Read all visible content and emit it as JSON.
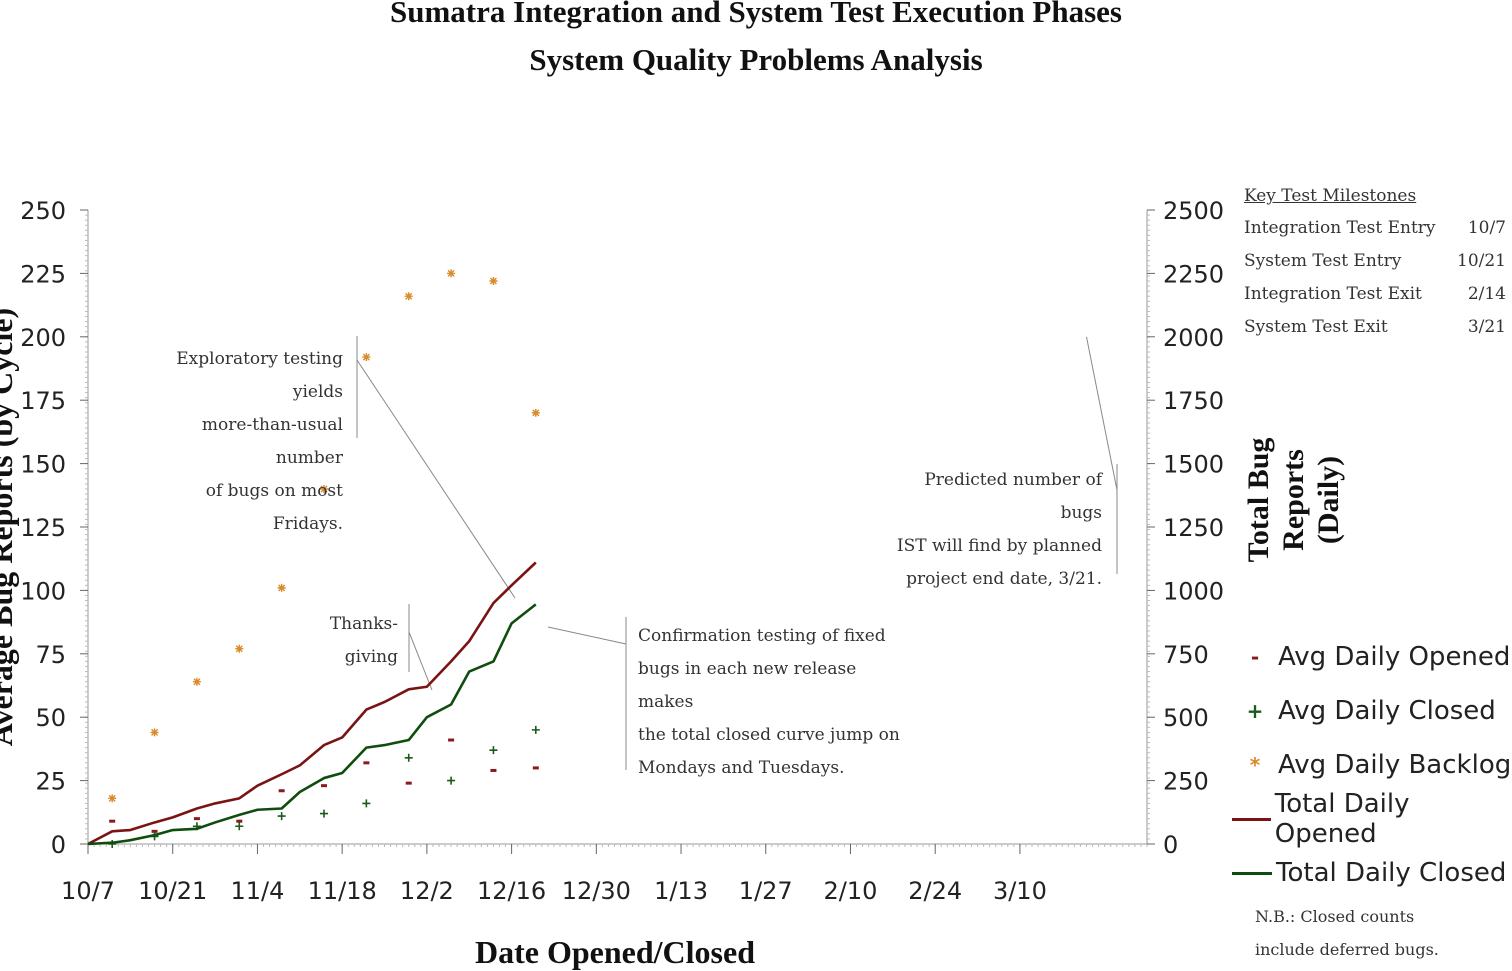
{
  "chart_data": {
    "type": "line",
    "title": "Sumatra Integration and System Test Execution Phases",
    "subtitle": "System Quality Problems Analysis",
    "xlabel": "Date Opened/Closed",
    "ylabel_left": "Average Bug Reports (by Cycle)",
    "ylabel_right": "Total Bug Reports (Daily)",
    "x_ticks": [
      "10/7",
      "10/21",
      "11/4",
      "11/18",
      "12/2",
      "12/16",
      "12/30",
      "1/13",
      "1/27",
      "2/10",
      "2/24",
      "3/10"
    ],
    "xlim": [
      0,
      175
    ],
    "y_left": {
      "ticks": [
        0,
        25,
        50,
        75,
        100,
        125,
        150,
        175,
        200,
        225,
        250
      ],
      "ylim": [
        0,
        250
      ]
    },
    "y_right": {
      "ticks": [
        0,
        250,
        500,
        750,
        1000,
        1250,
        1500,
        1750,
        2000,
        2250,
        2500
      ],
      "ylim": [
        0,
        2500
      ]
    },
    "series": [
      {
        "name": "Avg Daily Opened",
        "axis": "left",
        "marker": "-",
        "color": "#8B1A1A",
        "x": [
          4,
          11,
          18,
          25,
          32,
          39,
          46,
          53,
          60,
          67,
          74
        ],
        "y": [
          9,
          5,
          10,
          9,
          21,
          23,
          32,
          24,
          41,
          29,
          30
        ]
      },
      {
        "name": "Avg Daily Closed",
        "axis": "left",
        "marker": "+",
        "color": "#1a5a1a",
        "x": [
          4,
          11,
          18,
          25,
          32,
          39,
          46,
          53,
          60,
          67,
          74
        ],
        "y": [
          0,
          3,
          7,
          7,
          11,
          12,
          16,
          34,
          25,
          37,
          45
        ]
      },
      {
        "name": "Avg Daily Backlog",
        "axis": "left",
        "marker": "*",
        "color": "#D98A2B",
        "x": [
          4,
          11,
          18,
          25,
          32,
          39,
          46,
          53,
          60,
          67,
          74
        ],
        "y": [
          18,
          44,
          64,
          77,
          101,
          140,
          192,
          216,
          225,
          222,
          170
        ]
      },
      {
        "name": "Total Daily Opened",
        "axis": "right",
        "marker": "line",
        "color": "#7A1414",
        "x": [
          0,
          4,
          7,
          11,
          14,
          18,
          21,
          25,
          28,
          32,
          35,
          39,
          42,
          46,
          49,
          53,
          56,
          60,
          63,
          67,
          70,
          74
        ],
        "y": [
          0,
          50,
          55,
          85,
          105,
          140,
          160,
          180,
          230,
          275,
          310,
          390,
          420,
          530,
          560,
          610,
          620,
          720,
          800,
          950,
          1020,
          1110
        ]
      },
      {
        "name": "Total Daily Closed",
        "axis": "right",
        "marker": "line",
        "color": "#0F4D0F",
        "x": [
          0,
          4,
          7,
          11,
          14,
          18,
          21,
          25,
          28,
          32,
          35,
          39,
          42,
          46,
          49,
          53,
          56,
          60,
          63,
          67,
          70,
          74
        ],
        "y": [
          0,
          5,
          15,
          35,
          55,
          60,
          85,
          115,
          135,
          140,
          205,
          260,
          280,
          380,
          390,
          410,
          500,
          550,
          680,
          720,
          870,
          945
        ]
      }
    ],
    "annotations": [
      {
        "text": [
          "Exploratory testing yields",
          "more-than-usual number",
          "of bugs on most Fridays."
        ]
      },
      {
        "text": [
          "Thanks-",
          "giving"
        ]
      },
      {
        "text": [
          "Confirmation testing of fixed",
          "bugs in each new release makes",
          "the total closed curve jump on",
          "Mondays and Tuesdays."
        ]
      },
      {
        "text": [
          "Predicted number of bugs",
          "IST will find by planned",
          "project end date, 3/21."
        ]
      }
    ],
    "prediction_marker": {
      "date": "3/21",
      "x": 165,
      "y": 2000
    },
    "milestones": {
      "title": "Key Test Milestones",
      "rows": [
        {
          "name": "Integration Test Entry",
          "date": "10/7"
        },
        {
          "name": "System Test Entry",
          "date": "10/21"
        },
        {
          "name": "Integration Test Exit",
          "date": "2/14"
        },
        {
          "name": "System Test Exit",
          "date": "3/21"
        }
      ]
    },
    "footnote": [
      "N.B.: Closed counts",
      "include deferred bugs."
    ],
    "legend_position": "right",
    "grid": false
  }
}
